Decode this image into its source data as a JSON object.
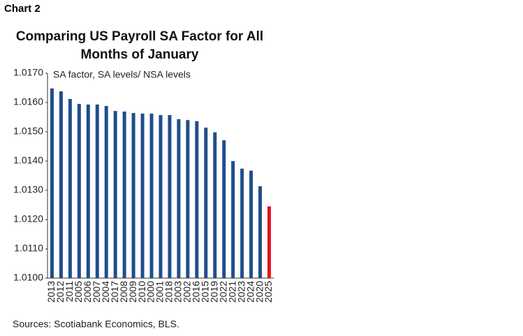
{
  "label": "Chart 2",
  "chart_data": {
    "type": "bar",
    "title": "Comparing US Payroll SA Factor for All Months of January",
    "subtitle": "SA factor, SA levels/ NSA levels",
    "source": "Sources: Scotiabank Economics, BLS.",
    "categories": [
      "2013",
      "2012",
      "2011",
      "2005",
      "2006",
      "2007",
      "2004",
      "2017",
      "2008",
      "2009",
      "2010",
      "2000",
      "2001",
      "2018",
      "2003",
      "2002",
      "2016",
      "2015",
      "2019",
      "2022",
      "2021",
      "2023",
      "2024",
      "2020",
      "2025"
    ],
    "values": [
      1.01648,
      1.01638,
      1.01612,
      1.01595,
      1.01593,
      1.01593,
      1.01588,
      1.01571,
      1.01569,
      1.01564,
      1.01562,
      1.01562,
      1.01557,
      1.01557,
      1.01543,
      1.0154,
      1.01536,
      1.01514,
      1.01498,
      1.01471,
      1.014,
      1.01374,
      1.01367,
      1.01314,
      1.01245
    ],
    "colors": [
      "#1f4e8c",
      "#1f4e8c",
      "#1f4e8c",
      "#1f4e8c",
      "#1f4e8c",
      "#1f4e8c",
      "#1f4e8c",
      "#1f4e8c",
      "#1f4e8c",
      "#1f4e8c",
      "#1f4e8c",
      "#1f4e8c",
      "#1f4e8c",
      "#1f4e8c",
      "#1f4e8c",
      "#1f4e8c",
      "#1f4e8c",
      "#1f4e8c",
      "#1f4e8c",
      "#1f4e8c",
      "#1f4e8c",
      "#1f4e8c",
      "#1f4e8c",
      "#1f4e8c",
      "#e8141c"
    ],
    "ylim": [
      1.01,
      1.017
    ],
    "yticks": [
      {
        "value": 1.01,
        "label": "1.0100"
      },
      {
        "value": 1.011,
        "label": "1.0110"
      },
      {
        "value": 1.012,
        "label": "1.0120"
      },
      {
        "value": 1.013,
        "label": "1.0130"
      },
      {
        "value": 1.014,
        "label": "1.0140"
      },
      {
        "value": 1.015,
        "label": "1.0150"
      },
      {
        "value": 1.016,
        "label": "1.0160"
      },
      {
        "value": 1.017,
        "label": "1.0170"
      }
    ],
    "grid": false
  }
}
